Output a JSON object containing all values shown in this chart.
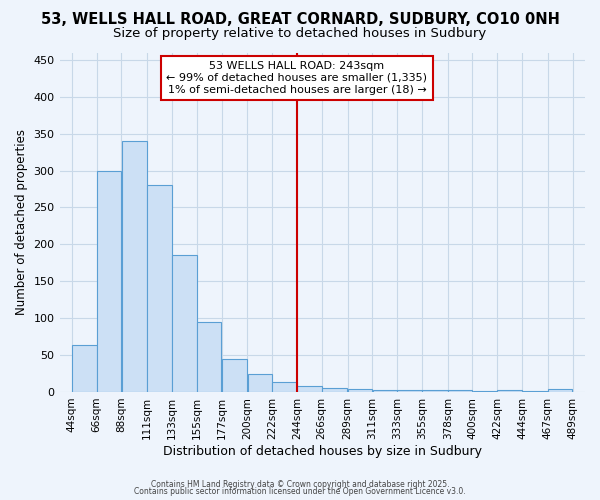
{
  "title1": "53, WELLS HALL ROAD, GREAT CORNARD, SUDBURY, CO10 0NH",
  "title2": "Size of property relative to detached houses in Sudbury",
  "xlabel": "Distribution of detached houses by size in Sudbury",
  "ylabel": "Number of detached properties",
  "bar_left_edges": [
    44,
    66,
    88,
    111,
    133,
    155,
    177,
    200,
    222,
    244,
    266,
    289,
    311,
    333,
    355,
    378,
    400,
    422,
    444,
    467
  ],
  "bar_widths": [
    22,
    22,
    23,
    22,
    22,
    22,
    23,
    22,
    22,
    22,
    23,
    22,
    22,
    22,
    23,
    22,
    22,
    22,
    23,
    22
  ],
  "bar_heights": [
    63,
    300,
    340,
    280,
    185,
    95,
    45,
    24,
    14,
    8,
    5,
    4,
    3,
    3,
    2,
    2,
    1,
    2,
    1,
    4
  ],
  "bar_facecolor": "#cce0f5",
  "bar_edgecolor": "#5a9fd4",
  "vline_x": 244,
  "vline_color": "#cc0000",
  "annotation_line1": "53 WELLS HALL ROAD: 243sqm",
  "annotation_line2": "← 99% of detached houses are smaller (1,335)",
  "annotation_line3": "1% of semi-detached houses are larger (18) →",
  "annotation_box_edgecolor": "#cc0000",
  "annotation_box_facecolor": "#ffffff",
  "tick_labels": [
    "44sqm",
    "66sqm",
    "88sqm",
    "111sqm",
    "133sqm",
    "155sqm",
    "177sqm",
    "200sqm",
    "222sqm",
    "244sqm",
    "266sqm",
    "289sqm",
    "311sqm",
    "333sqm",
    "355sqm",
    "378sqm",
    "400sqm",
    "422sqm",
    "444sqm",
    "467sqm",
    "489sqm"
  ],
  "tick_positions": [
    44,
    66,
    88,
    111,
    133,
    155,
    177,
    200,
    222,
    244,
    266,
    289,
    311,
    333,
    355,
    378,
    400,
    422,
    444,
    467,
    489
  ],
  "yticks": [
    0,
    50,
    100,
    150,
    200,
    250,
    300,
    350,
    400,
    450
  ],
  "ylim": [
    0,
    460
  ],
  "xlim": [
    33,
    500
  ],
  "bg_color": "#eef4fc",
  "grid_color": "#c8d8e8",
  "footnote1": "Contains HM Land Registry data © Crown copyright and database right 2025.",
  "footnote2": "Contains public sector information licensed under the Open Government Licence v3.0.",
  "title1_fontsize": 10.5,
  "title2_fontsize": 9.5,
  "ylabel_fontsize": 8.5,
  "xlabel_fontsize": 9,
  "tick_fontsize": 7.5,
  "annotation_fontsize": 8,
  "footnote_fontsize": 5.5
}
